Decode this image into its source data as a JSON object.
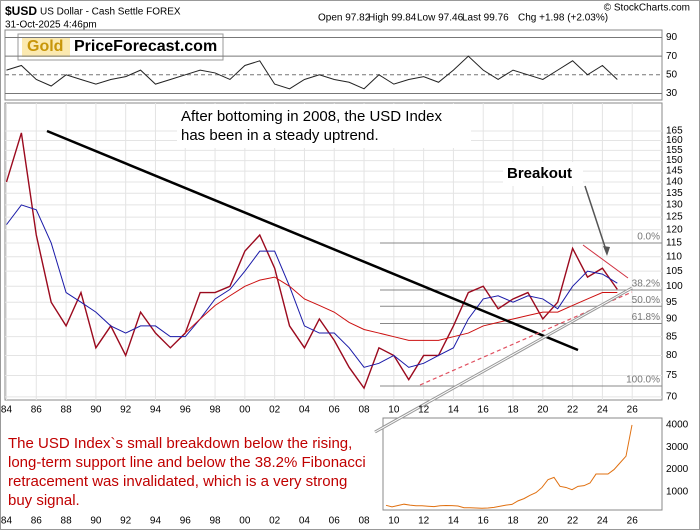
{
  "header": {
    "symbol": "$USD",
    "name": "US Dollar - Cash Settle FOREX",
    "date": "31-Oct-2025 4:46pm",
    "quote": [
      "Open 97.82",
      "High 99.84",
      "Low 97.46",
      "Last 99.76",
      "Chg +1.98 (+2.03%)"
    ],
    "credit": "© StockCharts.com",
    "logo": [
      "Gold",
      "PriceForecast.com"
    ]
  },
  "chart_data": [
    {
      "type": "line",
      "x": [
        1984,
        1985,
        1986,
        1987,
        1988,
        1989,
        1990,
        1991,
        1992,
        1993,
        1994,
        1995,
        1996,
        1997,
        1998,
        1999,
        2000,
        2001,
        2002,
        2003,
        2004,
        2005,
        2006,
        2007,
        2008,
        2009,
        2010,
        2011,
        2012,
        2013,
        2014,
        2015,
        2016,
        2017,
        2018,
        2019,
        2020,
        2021,
        2022,
        2023,
        2024,
        2025
      ],
      "series": [
        {
          "color": "#222222",
          "values": [
            55,
            60,
            45,
            38,
            50,
            45,
            40,
            45,
            48,
            55,
            40,
            45,
            50,
            55,
            52,
            45,
            60,
            65,
            40,
            35,
            45,
            50,
            45,
            42,
            35,
            50,
            40,
            45,
            48,
            42,
            55,
            70,
            55,
            45,
            55,
            50,
            45,
            55,
            65,
            50,
            60,
            45
          ]
        }
      ],
      "xlim": [
        1983.9,
        2028
      ],
      "ylim": [
        23,
        98
      ],
      "yticks": [
        30,
        50,
        70,
        90
      ],
      "dashed_ticks": [
        50
      ]
    },
    {
      "type": "line",
      "log": true,
      "grid": true,
      "x": [
        1984,
        1985,
        1986,
        1987,
        1988,
        1989,
        1990,
        1991,
        1992,
        1993,
        1994,
        1995,
        1996,
        1997,
        1998,
        1999,
        2000,
        2001,
        2002,
        2003,
        2004,
        2005,
        2006,
        2007,
        2008,
        2009,
        2010,
        2011,
        2012,
        2013,
        2014,
        2015,
        2016,
        2017,
        2018,
        2019,
        2020,
        2021,
        2022,
        2023,
        2024,
        2025
      ],
      "series": [
        {
          "color": "#9b0a1e",
          "values": [
            140,
            164,
            118,
            95,
            88,
            98,
            82,
            88,
            80,
            92,
            86,
            82,
            86,
            98,
            98,
            100,
            112,
            118,
            106,
            88,
            82,
            90,
            84,
            77,
            72,
            82,
            80,
            74,
            80,
            80,
            88,
            98,
            100,
            93,
            96,
            98,
            90,
            95,
            113,
            103,
            106,
            99
          ]
        },
        {
          "color": "#1a1aa8",
          "values": [
            122,
            130,
            128,
            115,
            98,
            95,
            92,
            88,
            86,
            88,
            88,
            85,
            85,
            90,
            96,
            99,
            105,
            112,
            112,
            100,
            88,
            86,
            86,
            82,
            77,
            78,
            80,
            77,
            78,
            80,
            82,
            90,
            96,
            97,
            95,
            97,
            96,
            93,
            100,
            105,
            104,
            101
          ]
        },
        {
          "color": "#cc1010",
          "values": [
            null,
            null,
            null,
            null,
            null,
            null,
            null,
            null,
            null,
            null,
            null,
            null,
            86,
            90,
            94,
            97,
            100,
            102,
            103,
            100,
            96,
            94,
            92,
            89,
            87,
            86,
            85,
            84,
            84,
            84,
            85,
            86,
            88,
            89,
            90,
            91,
            92,
            92,
            94,
            96,
            98,
            98
          ]
        }
      ],
      "xlim": [
        1983.9,
        2028
      ],
      "ylim": [
        69.3,
        180.6
      ],
      "yticks": [
        70,
        75,
        80,
        85,
        90,
        95,
        100,
        105,
        110,
        115,
        120,
        125,
        130,
        135,
        140,
        145,
        150,
        155,
        160,
        165
      ],
      "xticks": [
        {
          "value": 1984,
          "label": "84"
        },
        {
          "value": 1986,
          "label": "86"
        },
        {
          "value": 1988,
          "label": "88"
        },
        {
          "value": 1990,
          "label": "90"
        },
        {
          "value": 1992,
          "label": "92"
        },
        {
          "value": 1994,
          "label": "94"
        },
        {
          "value": 1996,
          "label": "96"
        },
        {
          "value": 1998,
          "label": "98"
        },
        {
          "value": 2000,
          "label": "00"
        },
        {
          "value": 2002,
          "label": "02"
        },
        {
          "value": 2004,
          "label": "04"
        },
        {
          "value": 2006,
          "label": "06"
        },
        {
          "value": 2008,
          "label": "08"
        },
        {
          "value": 2010,
          "label": "10"
        },
        {
          "value": 2012,
          "label": "12"
        },
        {
          "value": 2014,
          "label": "14"
        },
        {
          "value": 2016,
          "label": "16"
        },
        {
          "value": 2018,
          "label": "18"
        },
        {
          "value": 2020,
          "label": "20"
        },
        {
          "value": 2022,
          "label": "22"
        },
        {
          "value": 2024,
          "label": "24"
        },
        {
          "value": 2026,
          "label": "26"
        }
      ],
      "fib_levels": [
        {
          "value": 115,
          "label": "0.0%"
        },
        {
          "value": 98.8,
          "label": "38.2%"
        },
        {
          "value": 93.75,
          "label": "50.0%"
        },
        {
          "value": 88.7,
          "label": "61.8%"
        },
        {
          "value": 72.5,
          "label": "100.0%"
        }
      ],
      "annotation": "After bottoming in 2008, the USD Index has been in a steady uptrend.",
      "callout": "Breakout"
    },
    {
      "type": "line",
      "x": [
        1984,
        1985,
        1986,
        1987,
        1988,
        1989,
        1990,
        1991,
        1992,
        1993,
        1994,
        1995,
        1996,
        1997,
        1998,
        1999,
        2000,
        2001,
        2002,
        2003,
        2004,
        2005,
        2006,
        2007,
        2008,
        2009,
        2010,
        2011,
        2012,
        2013,
        2014,
        2015,
        2016,
        2017,
        2018,
        2019,
        2020,
        2021,
        2022,
        2023,
        2024,
        2025
      ],
      "series": [
        {
          "color": "#e07010",
          "values": [
            400,
            330,
            390,
            450,
            410,
            380,
            380,
            360,
            340,
            380,
            390,
            385,
            370,
            290,
            290,
            280,
            270,
            280,
            310,
            360,
            410,
            440,
            600,
            700,
            850,
            970,
            1200,
            1550,
            1650,
            1250,
            1200,
            1100,
            1250,
            1280,
            1400,
            1800,
            1800,
            1800,
            2000,
            2300,
            2600,
            4000
          ]
        }
      ],
      "xlim": [
        1983.5,
        2030
      ],
      "ylim": [
        190,
        4310
      ],
      "yticks": [
        1000,
        2000,
        3000,
        4000
      ],
      "annotation": "The USD Index`s small breakdown below the rising, long-term support line and below the 38.2% Fibonacci retracement was invalidated, which is a very strong buy signal."
    }
  ]
}
